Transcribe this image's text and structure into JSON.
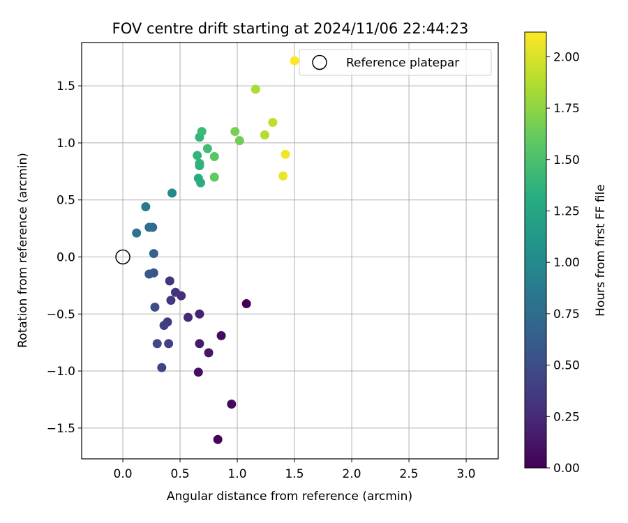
{
  "chart_data": {
    "type": "scatter",
    "title": "FOV centre drift starting at 2024/11/06 22:44:23",
    "xlabel": "Angular distance from reference (arcmin)",
    "ylabel": "Rotation from reference (arcmin)",
    "xlim": [
      -0.36,
      3.28
    ],
    "ylim": [
      -1.77,
      1.88
    ],
    "x_ticks": [
      0.0,
      0.5,
      1.0,
      1.5,
      2.0,
      2.5,
      3.0
    ],
    "y_ticks": [
      -1.5,
      -1.0,
      -0.5,
      0.0,
      0.5,
      1.0,
      1.5
    ],
    "x_tick_labels": [
      "0.0",
      "0.5",
      "1.0",
      "1.5",
      "2.0",
      "2.5",
      "3.0"
    ],
    "y_tick_labels": [
      "−1.5",
      "−1.0",
      "−0.5",
      "0.0",
      "0.5",
      "1.0",
      "1.5"
    ],
    "grid": true,
    "legend": {
      "position": "top-right",
      "entries": [
        "Reference platepar"
      ]
    },
    "reference_point": {
      "name": "Reference platepar",
      "x": 0.0,
      "y": 0.0
    },
    "colorbar": {
      "label": "Hours from first FF file",
      "colormap": "viridis",
      "min": 0.0,
      "max": 2.12,
      "ticks": [
        0.0,
        0.25,
        0.5,
        0.75,
        1.0,
        1.25,
        1.5,
        1.75,
        2.0
      ],
      "tick_labels": [
        "0.00",
        "0.25",
        "0.50",
        "0.75",
        "1.00",
        "1.25",
        "1.50",
        "1.75",
        "2.00"
      ]
    },
    "points": [
      {
        "x": 1.08,
        "y": -0.41,
        "c": 0.0
      },
      {
        "x": 0.83,
        "y": -1.6,
        "c": 0.02
      },
      {
        "x": 0.95,
        "y": -1.29,
        "c": 0.04
      },
      {
        "x": 0.86,
        "y": -0.69,
        "c": 0.06
      },
      {
        "x": 0.66,
        "y": -1.01,
        "c": 0.08
      },
      {
        "x": 0.75,
        "y": -0.84,
        "c": 0.12
      },
      {
        "x": 0.67,
        "y": -0.76,
        "c": 0.16
      },
      {
        "x": 0.67,
        "y": -0.5,
        "c": 0.2
      },
      {
        "x": 0.57,
        "y": -0.53,
        "c": 0.24
      },
      {
        "x": 0.51,
        "y": -0.34,
        "c": 0.28
      },
      {
        "x": 0.46,
        "y": -0.31,
        "c": 0.3
      },
      {
        "x": 0.41,
        "y": -0.21,
        "c": 0.32
      },
      {
        "x": 0.42,
        "y": -0.38,
        "c": 0.35
      },
      {
        "x": 0.39,
        "y": -0.57,
        "c": 0.37
      },
      {
        "x": 0.36,
        "y": -0.6,
        "c": 0.39
      },
      {
        "x": 0.4,
        "y": -0.76,
        "c": 0.41
      },
      {
        "x": 0.34,
        "y": -0.97,
        "c": 0.43
      },
      {
        "x": 0.3,
        "y": -0.76,
        "c": 0.45
      },
      {
        "x": 0.28,
        "y": -0.44,
        "c": 0.5
      },
      {
        "x": 0.27,
        "y": -0.14,
        "c": 0.55
      },
      {
        "x": 0.23,
        "y": -0.15,
        "c": 0.58
      },
      {
        "x": 0.27,
        "y": 0.03,
        "c": 0.65
      },
      {
        "x": 0.26,
        "y": 0.26,
        "c": 0.72
      },
      {
        "x": 0.23,
        "y": 0.26,
        "c": 0.76
      },
      {
        "x": 0.12,
        "y": 0.21,
        "c": 0.8
      },
      {
        "x": 0.2,
        "y": 0.44,
        "c": 0.86
      },
      {
        "x": 0.43,
        "y": 0.56,
        "c": 1.0
      },
      {
        "x": 0.66,
        "y": 0.69,
        "c": 1.3
      },
      {
        "x": 0.68,
        "y": 0.65,
        "c": 1.32
      },
      {
        "x": 0.67,
        "y": 0.8,
        "c": 1.34
      },
      {
        "x": 0.67,
        "y": 0.82,
        "c": 1.36
      },
      {
        "x": 0.65,
        "y": 0.89,
        "c": 1.38
      },
      {
        "x": 0.67,
        "y": 1.05,
        "c": 1.4
      },
      {
        "x": 0.69,
        "y": 1.1,
        "c": 1.44
      },
      {
        "x": 0.74,
        "y": 0.95,
        "c": 1.47
      },
      {
        "x": 0.8,
        "y": 0.88,
        "c": 1.56
      },
      {
        "x": 0.8,
        "y": 0.7,
        "c": 1.6
      },
      {
        "x": 1.02,
        "y": 1.02,
        "c": 1.66
      },
      {
        "x": 0.98,
        "y": 1.1,
        "c": 1.68
      },
      {
        "x": 1.16,
        "y": 1.47,
        "c": 1.85
      },
      {
        "x": 1.24,
        "y": 1.07,
        "c": 1.88
      },
      {
        "x": 1.31,
        "y": 1.18,
        "c": 1.92
      },
      {
        "x": 1.4,
        "y": 0.71,
        "c": 2.06
      },
      {
        "x": 1.42,
        "y": 0.9,
        "c": 2.08
      },
      {
        "x": 1.5,
        "y": 1.72,
        "c": 2.12
      }
    ]
  }
}
